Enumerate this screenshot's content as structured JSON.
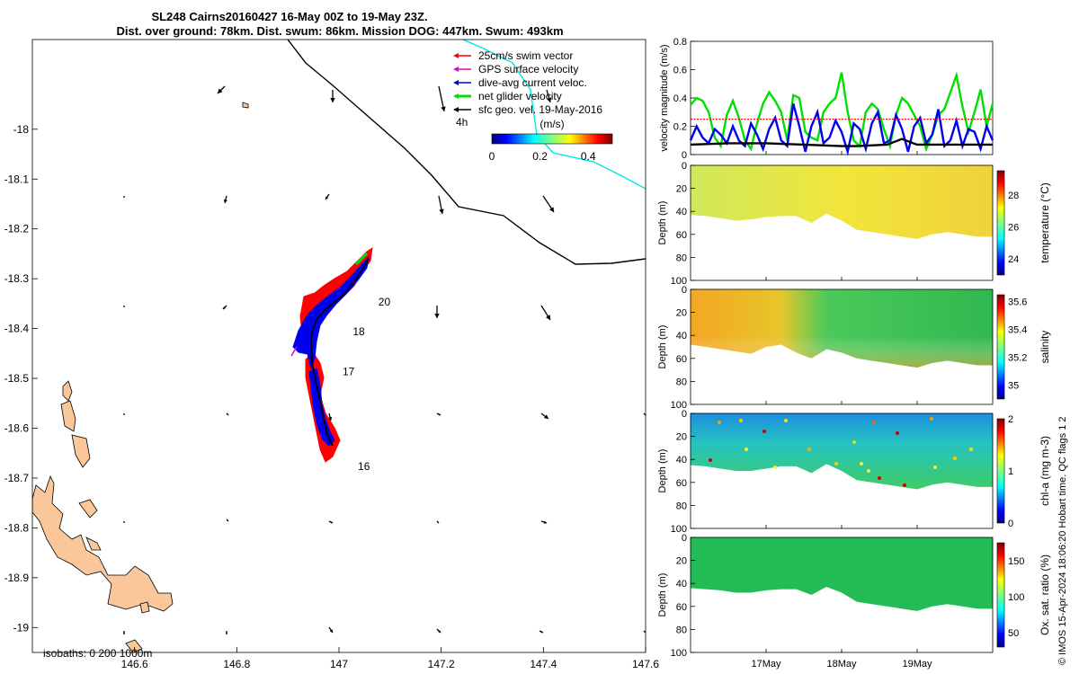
{
  "title": {
    "line1": "SL248 Cairns20160427 16-May 00Z to 19-May 23Z.",
    "line2": "Dist. over ground: 78km. Dist. swum: 86km. Mission DOG: 447km. Swum: 493km"
  },
  "colors": {
    "land": "#f9c79a",
    "swim": "#ff0000",
    "gps": "#e000e0",
    "dive_avg": "#0000ee",
    "net": "#00e000",
    "geo": "#000000",
    "track_cyan": "#00e5e5",
    "salinity_fill": "#33cc66",
    "oxygen_fill": "#22bb55",
    "chla_fill": "#22aadd",
    "temp_fill": "#e8e44a"
  },
  "map": {
    "lon_ticks": [
      "146.6",
      "146.8",
      "147",
      "147.2",
      "147.4",
      "147.6"
    ],
    "lat_ticks": [
      "-18",
      "-18.1",
      "-18.2",
      "-18.3",
      "-18.4",
      "-18.5",
      "-18.6",
      "-18.7",
      "-18.8",
      "-18.9",
      "-19"
    ],
    "xlim": [
      146.4,
      147.6
    ],
    "ylim": [
      -19.05,
      -17.82
    ],
    "legend": [
      {
        "key": "swim",
        "label": "25cm/s swim vector"
      },
      {
        "key": "gps",
        "label": "GPS surface velocity"
      },
      {
        "key": "dive_avg",
        "label": "dive-avg current veloc."
      },
      {
        "key": "net",
        "label": "net glider velocity"
      },
      {
        "key": "geo",
        "label": "sfc geo. vel. 19-May-2016"
      }
    ],
    "interval_label": "4h",
    "colorbar_unit": "(m/s)",
    "colorbar_ticks": [
      "0",
      "0.2",
      "0.4"
    ],
    "isobaths_label": "isobaths: 0   200  1000m",
    "day_labels": [
      {
        "text": "20",
        "lon": 147.07,
        "lat": -18.35
      },
      {
        "text": "18",
        "lon": 147.02,
        "lat": -18.41
      },
      {
        "text": "17",
        "lon": 147.0,
        "lat": -18.49
      },
      {
        "text": "16",
        "lon": 147.03,
        "lat": -18.68
      }
    ]
  },
  "chart_data": [
    {
      "type": "line",
      "panel": "velocity",
      "ylabel": "velocity magnitude (m/s)",
      "yticks": [
        "0",
        "0.2",
        "0.4",
        "0.6",
        "0.8"
      ],
      "ylim": [
        0,
        0.8
      ],
      "xlim": [
        0,
        4
      ],
      "series": [
        {
          "key": "net",
          "x": [
            0,
            0.08,
            0.16,
            0.24,
            0.32,
            0.4,
            0.48,
            0.56,
            0.64,
            0.72,
            0.8,
            0.88,
            0.96,
            1.04,
            1.12,
            1.2,
            1.28,
            1.36,
            1.44,
            1.52,
            1.6,
            1.68,
            1.76,
            1.84,
            1.92,
            2.0,
            2.08,
            2.16,
            2.24,
            2.32,
            2.4,
            2.48,
            2.56,
            2.64,
            2.72,
            2.8,
            2.88,
            2.96,
            3.04,
            3.12,
            3.2,
            3.28,
            3.36,
            3.44,
            3.52,
            3.6,
            3.68,
            3.76,
            3.84,
            3.92,
            4.0
          ],
          "y": [
            0.35,
            0.4,
            0.38,
            0.3,
            0.12,
            0.06,
            0.28,
            0.38,
            0.26,
            0.1,
            0.04,
            0.22,
            0.36,
            0.44,
            0.38,
            0.3,
            0.1,
            0.42,
            0.4,
            0.16,
            0.12,
            0.1,
            0.3,
            0.36,
            0.4,
            0.58,
            0.3,
            0.1,
            0.06,
            0.3,
            0.36,
            0.32,
            0.18,
            0.06,
            0.28,
            0.4,
            0.36,
            0.28,
            0.2,
            0.04,
            0.14,
            0.28,
            0.32,
            0.44,
            0.56,
            0.34,
            0.16,
            0.3,
            0.46,
            0.2,
            0.36
          ]
        },
        {
          "key": "dive_avg",
          "x": [
            0,
            0.08,
            0.16,
            0.24,
            0.32,
            0.4,
            0.48,
            0.56,
            0.64,
            0.72,
            0.8,
            0.88,
            0.96,
            1.04,
            1.12,
            1.2,
            1.28,
            1.36,
            1.44,
            1.52,
            1.6,
            1.68,
            1.76,
            1.84,
            1.92,
            2.0,
            2.08,
            2.16,
            2.24,
            2.32,
            2.4,
            2.48,
            2.56,
            2.64,
            2.72,
            2.8,
            2.88,
            2.96,
            3.04,
            3.12,
            3.2,
            3.28,
            3.36,
            3.44,
            3.52,
            3.6,
            3.68,
            3.76,
            3.84,
            3.92,
            4.0
          ],
          "y": [
            0.1,
            0.2,
            0.12,
            0.08,
            0.18,
            0.14,
            0.08,
            0.2,
            0.1,
            0.06,
            0.22,
            0.14,
            0.04,
            0.18,
            0.26,
            0.1,
            0.06,
            0.36,
            0.2,
            0.02,
            0.2,
            0.3,
            0.08,
            0.12,
            0.24,
            0.16,
            0.02,
            0.22,
            0.18,
            0.04,
            0.22,
            0.3,
            0.08,
            0.1,
            0.28,
            0.18,
            0.02,
            0.2,
            0.26,
            0.08,
            0.14,
            0.32,
            0.06,
            0.1,
            0.24,
            0.06,
            0.18,
            0.16,
            0.04,
            0.2,
            0.1
          ]
        },
        {
          "key": "geo",
          "x": [
            0,
            0.5,
            1.0,
            1.5,
            2.0,
            2.2,
            2.6,
            2.8,
            3.0,
            3.5,
            4.0
          ],
          "y": [
            0.07,
            0.08,
            0.08,
            0.07,
            0.06,
            0.06,
            0.07,
            0.11,
            0.07,
            0.07,
            0.07
          ]
        },
        {
          "key": "swim",
          "x": [
            0,
            4
          ],
          "y": [
            0.25,
            0.25
          ]
        }
      ]
    },
    {
      "type": "heatmap",
      "panel": "temperature",
      "ylabel": "Depth (m)",
      "colorbar_label": "temperature (°C)",
      "colorbar_ticks": [
        "24",
        "26",
        "28"
      ],
      "clim": [
        23,
        29.5
      ],
      "yticks": [
        "0",
        "20",
        "40",
        "60",
        "80",
        "100"
      ],
      "bottom_x": [
        0,
        0.2,
        0.4,
        0.6,
        0.8,
        1.0,
        1.2,
        1.4,
        1.6,
        1.8,
        2.0,
        2.2,
        2.4,
        2.6,
        2.8,
        3.0,
        3.2,
        3.4,
        3.6,
        3.8,
        4.0
      ],
      "bottom_depth": [
        43,
        44,
        46,
        48,
        47,
        45,
        44,
        44,
        50,
        42,
        48,
        56,
        58,
        60,
        62,
        64,
        60,
        58,
        60,
        62,
        62
      ]
    },
    {
      "type": "heatmap",
      "panel": "salinity",
      "ylabel": "Depth (m)",
      "colorbar_label": "salinity",
      "colorbar_ticks": [
        "35",
        "35.2",
        "35.4",
        "35.6"
      ],
      "clim": [
        34.9,
        35.65
      ],
      "yticks": [
        "0",
        "20",
        "40",
        "60",
        "80",
        "100"
      ],
      "bottom_x": [
        0,
        0.2,
        0.4,
        0.6,
        0.8,
        1.0,
        1.2,
        1.4,
        1.6,
        1.8,
        2.0,
        2.2,
        2.4,
        2.6,
        2.8,
        3.0,
        3.2,
        3.4,
        3.6,
        3.8,
        4.0
      ],
      "bottom_depth": [
        48,
        50,
        52,
        54,
        56,
        50,
        48,
        55,
        60,
        52,
        55,
        60,
        62,
        64,
        66,
        68,
        64,
        62,
        64,
        66,
        66
      ]
    },
    {
      "type": "heatmap",
      "panel": "chla",
      "ylabel": "Depth (m)",
      "colorbar_label": "chl-a (mg m-3)",
      "colorbar_ticks": [
        "0",
        "1",
        "2"
      ],
      "clim": [
        0,
        2
      ],
      "yticks": [
        "0",
        "20",
        "40",
        "60",
        "80",
        "100"
      ],
      "bottom_x": [
        0,
        0.2,
        0.4,
        0.6,
        0.8,
        1.0,
        1.2,
        1.4,
        1.6,
        1.8,
        2.0,
        2.2,
        2.4,
        2.6,
        2.8,
        3.0,
        3.2,
        3.4,
        3.6,
        3.8,
        4.0
      ],
      "bottom_depth": [
        45,
        46,
        48,
        50,
        50,
        48,
        46,
        46,
        52,
        44,
        50,
        58,
        60,
        62,
        64,
        66,
        62,
        60,
        62,
        64,
        64
      ]
    },
    {
      "type": "heatmap",
      "panel": "oxygen",
      "ylabel": "Depth (m)",
      "colorbar_label": "Ox. sat. ratio (%)",
      "colorbar_ticks": [
        "50",
        "100",
        "150"
      ],
      "clim": [
        30,
        175
      ],
      "yticks": [
        "0",
        "20",
        "40",
        "60",
        "80",
        "100"
      ],
      "bottom_x": [
        0,
        0.2,
        0.4,
        0.6,
        0.8,
        1.0,
        1.2,
        1.4,
        1.6,
        1.8,
        2.0,
        2.2,
        2.4,
        2.6,
        2.8,
        3.0,
        3.2,
        3.4,
        3.6,
        3.8,
        4.0
      ],
      "bottom_depth": [
        44,
        45,
        46,
        48,
        48,
        46,
        45,
        45,
        50,
        43,
        48,
        56,
        58,
        60,
        62,
        64,
        60,
        58,
        60,
        62,
        62
      ]
    }
  ],
  "time_axis": {
    "labels": [
      {
        "text": "17May",
        "x": 1.0
      },
      {
        "text": "18May",
        "x": 2.0
      },
      {
        "text": "19May",
        "x": 3.0
      }
    ]
  },
  "footer": {
    "credit": "© IMOS 15-Apr-2024 18:06:20 Hobart time. QC flags 1  2"
  }
}
